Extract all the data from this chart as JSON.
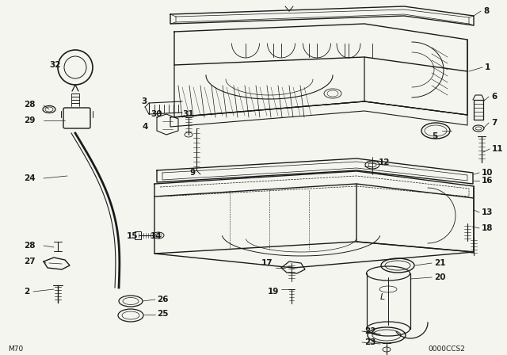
{
  "bg_color": "#f0f0f0",
  "line_color": "#1a1a1a",
  "fig_width": 6.4,
  "fig_height": 4.48,
  "dpi": 100,
  "bottom_left_text": "M70",
  "bottom_right_text": "0000CCS2"
}
